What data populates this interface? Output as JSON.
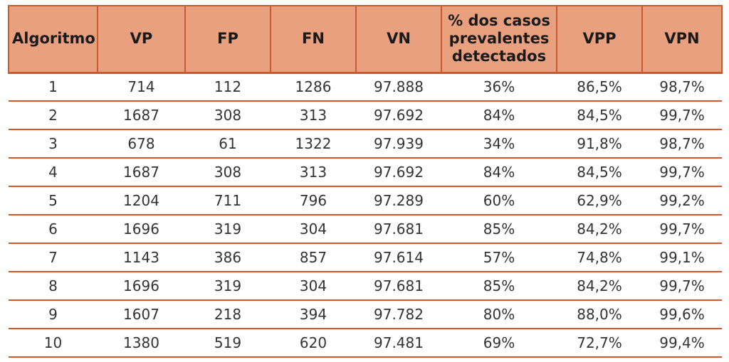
{
  "table": {
    "headers": [
      "Algoritmo",
      "VP",
      "FP",
      "FN",
      "VN",
      "% dos casos prevalentes detectados",
      "VPP",
      "VPN"
    ],
    "rows": [
      [
        "1",
        "714",
        "112",
        "1286",
        "97.888",
        "36%",
        "86,5%",
        "98,7%"
      ],
      [
        "2",
        "1687",
        "308",
        "313",
        "97.692",
        "84%",
        "84,5%",
        "99,7%"
      ],
      [
        "3",
        "678",
        "61",
        "1322",
        "97.939",
        "34%",
        "91,8%",
        "98,7%"
      ],
      [
        "4",
        "1687",
        "308",
        "313",
        "97.692",
        "84%",
        "84,5%",
        "99,7%"
      ],
      [
        "5",
        "1204",
        "711",
        "796",
        "97.289",
        "60%",
        "62,9%",
        "99,2%"
      ],
      [
        "6",
        "1696",
        "319",
        "304",
        "97.681",
        "85%",
        "84,2%",
        "99,7%"
      ],
      [
        "7",
        "1143",
        "386",
        "857",
        "97.614",
        "57%",
        "74,8%",
        "99,1%"
      ],
      [
        "8",
        "1696",
        "319",
        "304",
        "97.681",
        "85%",
        "84,2%",
        "99,7%"
      ],
      [
        "9",
        "1607",
        "218",
        "394",
        "97.782",
        "80%",
        "88,0%",
        "99,6%"
      ],
      [
        "10",
        "1380",
        "519",
        "620",
        "97.481",
        "69%",
        "72,7%",
        "99,4%"
      ]
    ]
  },
  "colors": {
    "header_fill": "#e9a07f",
    "rule": "#c85a2e",
    "header_text": "#1a1a1a",
    "body_text": "#333333"
  }
}
